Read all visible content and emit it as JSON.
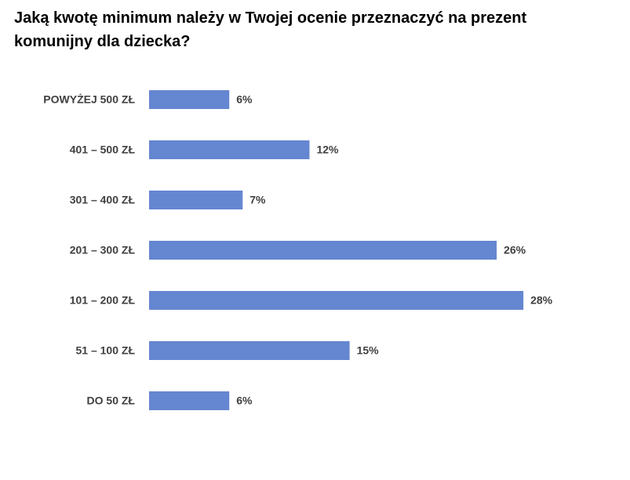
{
  "chart_data": {
    "type": "bar",
    "orientation": "horizontal",
    "title": "Jaką kwotę minimum należy w Twojej ocenie przeznaczyć na prezent komunijny dla dziecka?",
    "categories": [
      "POWYŻEJ 500 ZŁ",
      "401 – 500 ZŁ",
      "301 – 400 ZŁ",
      "201 – 300 ZŁ",
      "101 – 200 ZŁ",
      "51 – 100 ZŁ",
      "DO 50 ZŁ"
    ],
    "values": [
      6,
      12,
      7,
      26,
      28,
      15,
      6
    ],
    "value_labels": [
      "6%",
      "12%",
      "7%",
      "26%",
      "28%",
      "15%",
      "6%"
    ],
    "color": "#6586d0"
  }
}
